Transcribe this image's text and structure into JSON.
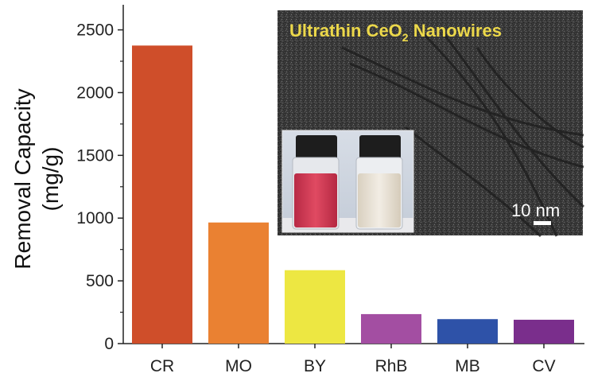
{
  "chart_data": {
    "type": "bar",
    "title": "",
    "xlabel": "",
    "ylabel_line1": "Removal Capacity",
    "ylabel_line2": "(mg/g)",
    "categories": [
      "CR",
      "MO",
      "BY",
      "RhB",
      "MB",
      "CV"
    ],
    "values": [
      2375,
      965,
      585,
      235,
      195,
      190
    ],
    "colors": [
      "#cf4e2a",
      "#ea8132",
      "#ede742",
      "#a34ea2",
      "#2e52a8",
      "#7a2e8c"
    ],
    "ylim": [
      0,
      2700
    ],
    "yticks": [
      0,
      500,
      1000,
      1500,
      2000,
      2500
    ],
    "grid": false
  },
  "inset": {
    "title_main": "Ultrathin CeO",
    "title_sub": "2",
    "title_tail": " Nanowires",
    "scale_bar_label": "10 nm",
    "photo": {
      "description_colors": {
        "left_solution": "#d63d55",
        "right_solution": "#ece6d8"
      }
    }
  }
}
